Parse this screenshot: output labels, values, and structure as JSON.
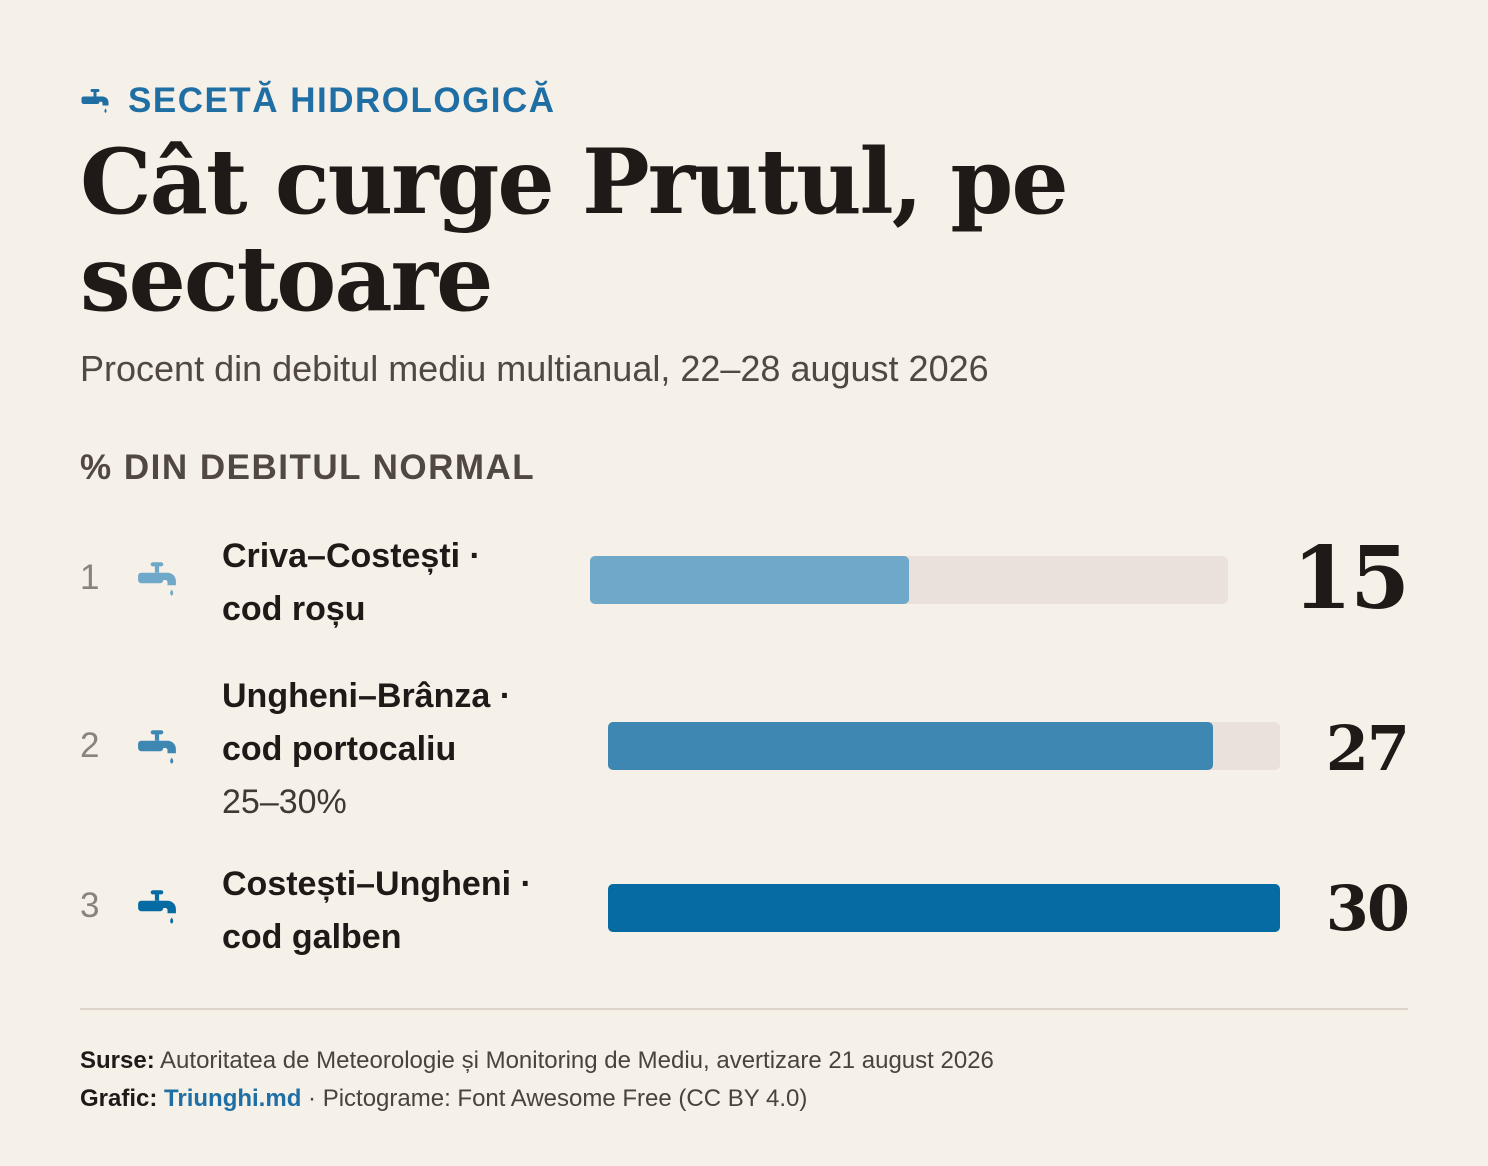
{
  "header": {
    "kicker": "SECETĂ HIDROLOGICĂ",
    "kicker_icon": "faucet-icon",
    "title": "Cât curge Prutul, pe sectoare",
    "subtitle": "Procent din debitul mediu multianual, 22–28 august 2026"
  },
  "chart_data": {
    "type": "bar",
    "orientation": "horizontal",
    "xlabel": "% DIN DEBITUL NORMAL",
    "row_icon": "faucet-icon",
    "colors": {
      "track": "#e9e1da"
    },
    "rows": [
      {
        "rank": "1",
        "name": "Criva–Costești ·",
        "code": "cod roșu",
        "range": "",
        "value": 15,
        "value_label": "15",
        "fill_fraction": 0.5,
        "color": "#6fa8c8"
      },
      {
        "rank": "2",
        "name": "Ungheni–Brânza ·",
        "code": "cod portocaliu",
        "range": "25–30%",
        "value": 27,
        "value_label": "27",
        "fill_fraction": 0.9,
        "color": "#3d87b2"
      },
      {
        "rank": "3",
        "name": "Costești–Ungheni ·",
        "code": "cod galben",
        "range": "",
        "value": 30,
        "value_label": "30",
        "fill_fraction": 1.0,
        "color": "#066aa3"
      }
    ]
  },
  "footer": {
    "sources_label": "Surse:",
    "sources_text": "Autoritatea de Meteorologie și Monitoring de Mediu, avertizare 21 august 2026",
    "graphic_label": "Grafic:",
    "graphic_link": "Triunghi.md",
    "graphic_rest": "· Pictograme: Font Awesome Free (CC BY 4.0)"
  }
}
